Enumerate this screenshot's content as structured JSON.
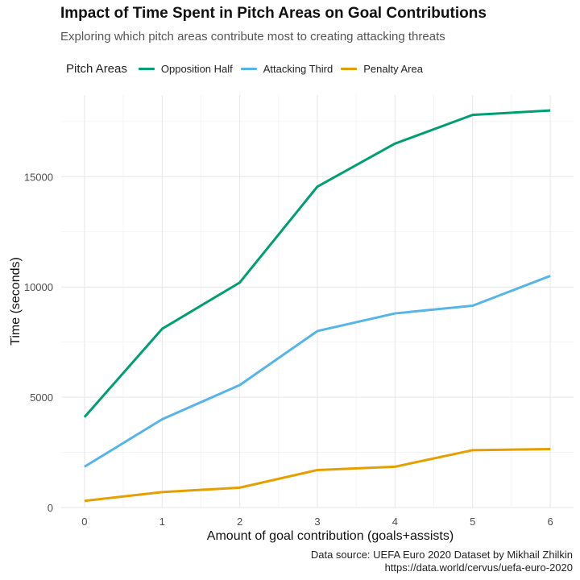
{
  "chart_data": {
    "type": "line",
    "title": "Impact of Time Spent in Pitch Areas on Goal Contributions",
    "subtitle": "Exploring which pitch areas contribute most to creating attacking threats",
    "xlabel": "Amount of goal contribution (goals+assists)",
    "ylabel": "Time (seconds)",
    "x": [
      0,
      1,
      2,
      3,
      4,
      5,
      6
    ],
    "xlim": [
      -0.3,
      6.3
    ],
    "ylim": [
      0,
      18700
    ],
    "x_ticks": [
      0,
      1,
      2,
      3,
      4,
      5,
      6
    ],
    "y_ticks": [
      0,
      5000,
      10000,
      15000
    ],
    "y_minor_ticks": [
      2500,
      7500,
      12500,
      17500
    ],
    "grid": true,
    "legend_title": "Pitch Areas",
    "legend_position": "top",
    "series": [
      {
        "name": "Opposition Half",
        "color": "#009E73",
        "values": [
          4100,
          8100,
          10200,
          14550,
          16500,
          17800,
          18000
        ]
      },
      {
        "name": "Attacking Third",
        "color": "#56B4E9",
        "values": [
          1850,
          4000,
          5550,
          8000,
          8800,
          9150,
          10500
        ]
      },
      {
        "name": "Penalty Area",
        "color": "#E69F00",
        "values": [
          300,
          700,
          900,
          1700,
          1850,
          2600,
          2650
        ]
      }
    ],
    "caption": [
      "Data source: UEFA Euro 2020 Dataset by Mikhail Zhilkin",
      "https://data.world/cervus/uefa-euro-2020"
    ]
  }
}
